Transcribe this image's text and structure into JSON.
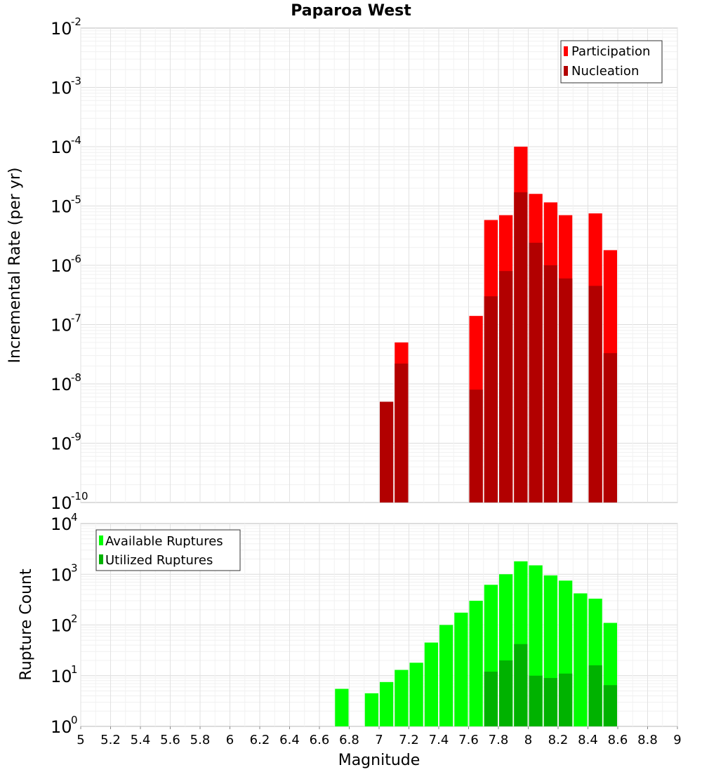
{
  "chart_data": [
    {
      "type": "bar",
      "title": "Paparoa West",
      "xlabel": "Magnitude",
      "ylabel": "Incremental Rate (per yr)",
      "yscale": "log",
      "ylim_exponents": [
        -10,
        -2
      ],
      "xlim": [
        5,
        9
      ],
      "legend_position": "top-right",
      "series": [
        {
          "name": "Participation",
          "color": "#ff0000",
          "x": [
            7.15,
            7.65,
            7.75,
            7.85,
            7.95,
            8.05,
            8.15,
            8.25,
            8.45,
            8.55
          ],
          "values": [
            5e-08,
            1.4e-07,
            5.8e-06,
            7e-06,
            0.0001,
            1.6e-05,
            1.15e-05,
            7e-06,
            7.5e-06,
            1.8e-06
          ]
        },
        {
          "name": "Nucleation",
          "color": "#b20000",
          "x": [
            7.05,
            7.15,
            7.65,
            7.75,
            7.85,
            7.95,
            8.05,
            8.15,
            8.25,
            8.45,
            8.55
          ],
          "values": [
            5e-09,
            2.2e-08,
            8e-09,
            3e-07,
            8e-07,
            1.7e-05,
            2.4e-06,
            1e-06,
            6e-07,
            4.5e-07,
            3.3e-08
          ]
        }
      ]
    },
    {
      "type": "bar",
      "xlabel": "Magnitude",
      "ylabel": "Rupture Count",
      "yscale": "log",
      "ylim_exponents": [
        0,
        4
      ],
      "xlim": [
        5,
        9
      ],
      "x_ticks": [
        "5",
        "5.2",
        "5.4",
        "5.6",
        "5.8",
        "6",
        "6.2",
        "6.4",
        "6.6",
        "6.8",
        "7",
        "7.2",
        "7.4",
        "7.6",
        "7.8",
        "8",
        "8.2",
        "8.4",
        "8.6",
        "8.8",
        "9"
      ],
      "legend_position": "top-left",
      "series": [
        {
          "name": "Available Ruptures",
          "color": "#00ff00",
          "x": [
            6.75,
            6.95,
            7.05,
            7.15,
            7.25,
            7.35,
            7.45,
            7.55,
            7.65,
            7.75,
            7.85,
            7.95,
            8.05,
            8.15,
            8.25,
            8.35,
            8.45,
            8.55
          ],
          "values": [
            5.5,
            4.5,
            7.5,
            13,
            18,
            45,
            100,
            175,
            300,
            620,
            1000,
            1800,
            1500,
            950,
            750,
            420,
            330,
            110
          ]
        },
        {
          "name": "Utilized Ruptures",
          "color": "#00b200",
          "x": [
            7.05,
            7.15,
            7.65,
            7.75,
            7.85,
            7.95,
            8.05,
            8.15,
            8.25,
            8.45,
            8.55
          ],
          "values": [
            1,
            1,
            1,
            12,
            20,
            42,
            10,
            9,
            11,
            16,
            6.5
          ]
        }
      ]
    }
  ]
}
